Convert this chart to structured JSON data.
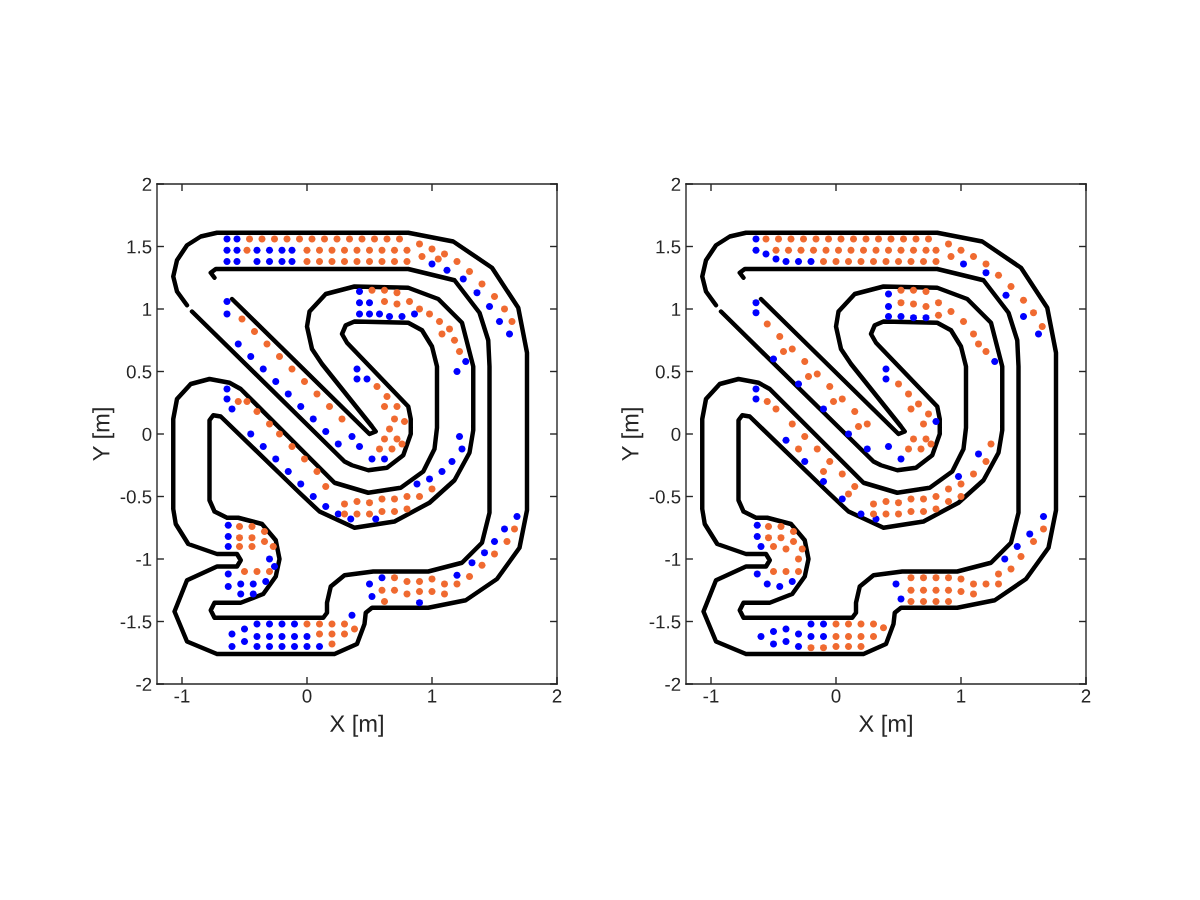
{
  "chart_data": [
    {
      "type": "scatter",
      "xlabel": "X [m]",
      "ylabel": "Y [m]",
      "xlim": [
        -1.2,
        2
      ],
      "ylim": [
        -2,
        2
      ],
      "xticks": [
        -1,
        0,
        1,
        2
      ],
      "yticks": [
        -2,
        -1.5,
        -1,
        -0.5,
        0,
        0.5,
        1,
        1.5,
        2
      ],
      "series": [
        {
          "type": "line",
          "color": "#000000",
          "x": [
            -0.96,
            -1.04,
            -1.07,
            -1.04,
            -0.96,
            -0.85,
            -0.72,
            0.81,
            1.17,
            1.48,
            1.69,
            1.76,
            1.76,
            1.7,
            1.52,
            1.27,
            0.97,
            0.52,
            0.47,
            0.46,
            0.4,
            0.22,
            -0.72,
            -0.96,
            -1.06,
            -0.96,
            -0.72,
            -0.56,
            -0.53,
            -0.56,
            -0.72,
            -0.95,
            -1.05,
            -1.07,
            -1.07,
            -1.04,
            -0.93,
            -0.78,
            -0.62,
            -0.53,
            0.05,
            0.22,
            0.49,
            0.75,
            0.93,
            1.02,
            1.04,
            1.04,
            1.0,
            0.92,
            0.81,
            0.38,
            0.31,
            0.28,
            0.32,
            0.81,
            0.83,
            0.83,
            0.77,
            0.64,
            0.49,
            0.36,
            0.3,
            -0.92
          ],
          "values": [
            1.03,
            1.14,
            1.26,
            1.39,
            1.51,
            1.58,
            1.61,
            1.61,
            1.54,
            1.33,
            1.01,
            0.65,
            -0.61,
            -0.91,
            -1.16,
            -1.33,
            -1.39,
            -1.39,
            -1.43,
            -1.52,
            -1.68,
            -1.76,
            -1.76,
            -1.66,
            -1.42,
            -1.17,
            -1.06,
            -1.06,
            -1.01,
            -0.96,
            -0.96,
            -0.88,
            -0.72,
            -0.6,
            0.12,
            0.28,
            0.4,
            0.44,
            0.41,
            0.36,
            -0.22,
            -0.39,
            -0.47,
            -0.43,
            -0.3,
            -0.12,
            0.05,
            0.54,
            0.7,
            0.83,
            0.89,
            0.9,
            0.87,
            0.8,
            0.73,
            0.22,
            0.12,
            0.0,
            -0.17,
            -0.27,
            -0.29,
            -0.25,
            -0.22,
            0.98
          ]
        },
        {
          "type": "line",
          "color": "#000000",
          "x": [
            -0.74,
            -0.77,
            -0.73,
            0.81,
            1.18,
            1.38,
            1.45,
            1.46,
            1.46,
            1.4,
            1.24,
            0.97,
            0.53,
            0.3,
            0.19,
            0.16,
            0.16,
            0.13,
            -0.74,
            -0.77,
            -0.74,
            -0.53,
            -0.35,
            -0.25,
            -0.22,
            -0.25,
            -0.36,
            -0.55,
            -0.64,
            -0.74,
            -0.78,
            -0.78,
            -0.75,
            -0.69,
            -0.06,
            0.1,
            0.38,
            0.7,
            0.98,
            1.18,
            1.3,
            1.33,
            1.33,
            1.24,
            1.05,
            0.81,
            0.38,
            0.15,
            0.02,
            0.0,
            0.04,
            0.12,
            0.52,
            0.55,
            0.5,
            -0.6
          ],
          "values": [
            1.25,
            1.29,
            1.32,
            1.32,
            1.23,
            0.97,
            0.75,
            0.54,
            -0.63,
            -0.87,
            -1.03,
            -1.1,
            -1.1,
            -1.13,
            -1.22,
            -1.35,
            -1.43,
            -1.47,
            -1.47,
            -1.41,
            -1.35,
            -1.35,
            -1.28,
            -1.14,
            -1.0,
            -0.85,
            -0.72,
            -0.67,
            -0.67,
            -0.62,
            -0.53,
            0.11,
            0.15,
            0.14,
            -0.47,
            -0.62,
            -0.75,
            -0.7,
            -0.55,
            -0.37,
            -0.15,
            0.03,
            0.54,
            0.89,
            1.08,
            1.17,
            1.18,
            1.12,
            0.98,
            0.86,
            0.68,
            0.56,
            0.06,
            0.02,
            0.0,
            1.08
          ]
        },
        {
          "color": "#0000ff",
          "marker": "circle",
          "x": [
            -0.64,
            -0.56,
            -0.64,
            -0.56,
            -0.64,
            -0.56,
            -0.4,
            -0.3,
            -0.2,
            -0.12,
            -0.4,
            -0.3,
            -0.2,
            -0.12,
            1.0,
            1.12,
            1.25,
            1.36,
            1.46,
            1.54,
            1.62,
            0.42,
            0.42,
            0.42,
            0.5,
            0.58,
            0.66,
            0.76,
            0.86,
            0.5,
            1.2,
            1.27,
            -0.64,
            -0.64,
            -0.55,
            -0.45,
            -0.35,
            -0.25,
            -0.15,
            -0.05,
            0.05,
            0.15,
            0.25,
            0.4,
            0.4,
            0.48,
            0.36,
            0.42,
            0.52,
            0.62,
            -0.64,
            -0.64,
            -0.6,
            -0.45,
            -0.35,
            -0.25,
            -0.15,
            -0.05,
            0.05,
            0.15,
            0.25,
            0.35,
            0.55,
            0.88,
            0.98,
            1.08,
            1.16,
            1.24,
            1.22,
            -0.63,
            -0.63,
            -0.63,
            -0.3,
            -0.26,
            -0.63,
            -0.63,
            -0.53,
            -0.43,
            -0.33,
            -0.53,
            -0.43,
            -0.6,
            -0.6,
            -0.5,
            -0.5,
            -0.4,
            -0.4,
            -0.4,
            -0.3,
            -0.3,
            -0.3,
            -0.2,
            -0.2,
            -0.2,
            -0.1,
            -0.1,
            -0.1,
            0.0,
            0.0,
            0.1,
            0.36,
            0.5,
            0.52,
            0.6,
            1.2,
            1.32,
            1.42,
            1.5,
            1.58,
            1.68,
            0.9
          ],
          "values": [
            1.56,
            1.56,
            1.47,
            1.47,
            1.38,
            1.38,
            1.47,
            1.47,
            1.47,
            1.47,
            1.38,
            1.38,
            1.38,
            1.38,
            1.36,
            1.31,
            1.24,
            1.13,
            1.02,
            0.9,
            0.8,
            1.14,
            1.05,
            0.96,
            0.96,
            0.96,
            0.94,
            0.94,
            0.96,
            1.05,
            0.5,
            0.58,
            1.06,
            0.96,
            0.72,
            0.62,
            0.52,
            0.42,
            0.32,
            0.22,
            0.12,
            0.02,
            -0.08,
            0.52,
            0.44,
            0.44,
            -0.02,
            -0.1,
            -0.2,
            -0.2,
            0.36,
            0.28,
            0.2,
            0.0,
            -0.1,
            -0.2,
            -0.3,
            -0.4,
            -0.5,
            -0.58,
            -0.64,
            -0.68,
            -0.68,
            -0.4,
            -0.36,
            -0.3,
            -0.22,
            -0.12,
            -0.02,
            -0.73,
            -0.82,
            -0.9,
            -1.0,
            -1.06,
            -1.12,
            -1.22,
            -1.2,
            -1.2,
            -1.18,
            -1.28,
            -1.28,
            -1.6,
            -1.7,
            -1.56,
            -1.66,
            -1.52,
            -1.62,
            -1.7,
            -1.52,
            -1.62,
            -1.7,
            -1.52,
            -1.62,
            -1.7,
            -1.52,
            -1.62,
            -1.7,
            -1.62,
            -1.7,
            -1.7,
            -1.45,
            -1.2,
            -1.3,
            -1.15,
            -1.13,
            -1.03,
            -0.95,
            -0.86,
            -0.76,
            -0.66,
            -1.35
          ]
        },
        {
          "color": "#f06a30",
          "marker": "circle",
          "x": [
            -0.46,
            -0.36,
            -0.26,
            -0.16,
            -0.06,
            0.04,
            0.14,
            0.24,
            0.34,
            0.44,
            0.54,
            0.64,
            0.74,
            -0.48,
            0.0,
            0.1,
            0.2,
            0.3,
            0.4,
            0.5,
            0.6,
            0.7,
            0.8,
            0.0,
            0.1,
            0.2,
            0.3,
            0.4,
            0.5,
            0.6,
            0.7,
            0.8,
            0.9,
            1.0,
            1.1,
            1.2,
            1.3,
            1.4,
            1.5,
            1.58,
            1.64,
            0.92,
            1.05,
            0.52,
            0.62,
            0.72,
            0.62,
            0.72,
            0.82,
            0.9,
            0.98,
            1.06,
            1.14,
            1.08,
            1.18,
            1.22,
            -0.52,
            -0.42,
            -0.32,
            -0.22,
            -0.12,
            -0.02,
            0.08,
            0.18,
            0.28,
            0.56,
            0.64,
            0.72,
            0.62,
            0.7,
            0.78,
            0.66,
            0.62,
            0.72,
            0.58,
            0.68,
            0.76,
            -0.55,
            -0.48,
            -0.4,
            -0.3,
            -0.22,
            -0.12,
            -0.02,
            0.08,
            0.15,
            0.3,
            0.3,
            0.4,
            0.4,
            0.5,
            0.5,
            0.6,
            0.6,
            0.7,
            0.7,
            0.8,
            0.8,
            0.9,
            1.0,
            -0.54,
            -0.44,
            -0.34,
            -0.54,
            -0.44,
            -0.34,
            -0.27,
            -0.54,
            -0.44,
            -0.5,
            -0.4,
            -0.3,
            0.0,
            0.1,
            0.1,
            0.2,
            0.2,
            0.3,
            0.3,
            0.2,
            0.38,
            0.7,
            0.7,
            0.8,
            0.8,
            0.9,
            0.9,
            1.0,
            1.0,
            1.1,
            1.1,
            1.2,
            1.3,
            1.4,
            1.5,
            1.6,
            1.66,
            0.6,
            0.62
          ],
          "values": [
            1.56,
            1.56,
            1.56,
            1.56,
            1.56,
            1.56,
            1.56,
            1.56,
            1.56,
            1.56,
            1.56,
            1.56,
            1.56,
            1.47,
            1.47,
            1.47,
            1.47,
            1.47,
            1.47,
            1.47,
            1.47,
            1.47,
            1.47,
            1.38,
            1.38,
            1.38,
            1.38,
            1.38,
            1.38,
            1.38,
            1.38,
            1.38,
            1.52,
            1.48,
            1.44,
            1.38,
            1.3,
            1.2,
            1.1,
            1.0,
            0.9,
            1.42,
            1.4,
            1.15,
            1.15,
            1.13,
            1.06,
            1.04,
            1.06,
            1.0,
            0.96,
            0.9,
            0.84,
            0.8,
            0.75,
            0.66,
            0.92,
            0.82,
            0.72,
            0.62,
            0.52,
            0.42,
            0.32,
            0.22,
            0.12,
            0.38,
            0.3,
            0.22,
            0.22,
            0.12,
            0.1,
            0.04,
            -0.04,
            -0.04,
            -0.12,
            -0.12,
            -0.08,
            0.26,
            0.26,
            0.18,
            0.08,
            0.0,
            -0.1,
            -0.2,
            -0.3,
            -0.42,
            -0.56,
            -0.64,
            -0.54,
            -0.64,
            -0.55,
            -0.64,
            -0.52,
            -0.62,
            -0.52,
            -0.62,
            -0.5,
            -0.6,
            -0.5,
            -0.44,
            -0.74,
            -0.74,
            -0.78,
            -0.83,
            -0.83,
            -0.86,
            -0.9,
            -0.9,
            -0.9,
            -1.1,
            -1.1,
            -1.1,
            -1.52,
            -1.52,
            -1.6,
            -1.52,
            -1.6,
            -1.52,
            -1.6,
            -1.68,
            -1.56,
            -1.15,
            -1.25,
            -1.18,
            -1.28,
            -1.18,
            -1.26,
            -1.16,
            -1.26,
            -1.2,
            -1.28,
            -1.2,
            -1.14,
            -1.05,
            -0.96,
            -0.86,
            -0.76,
            -1.25,
            -1.34
          ]
        }
      ]
    },
    {
      "type": "scatter",
      "xlabel": "X [m]",
      "ylabel": "Y [m]",
      "xlim": [
        -1.2,
        2
      ],
      "ylim": [
        -2,
        2
      ],
      "xticks": [
        -1,
        0,
        1,
        2
      ],
      "yticks": [
        -2,
        -1.5,
        -1,
        -0.5,
        0,
        0.5,
        1,
        1.5,
        2
      ],
      "series": [
        {
          "type": "line",
          "color": "#000000",
          "x": [
            -0.96,
            -1.04,
            -1.07,
            -1.04,
            -0.96,
            -0.85,
            -0.72,
            0.81,
            1.17,
            1.48,
            1.69,
            1.76,
            1.76,
            1.7,
            1.52,
            1.27,
            0.97,
            0.52,
            0.47,
            0.46,
            0.4,
            0.22,
            -0.72,
            -0.96,
            -1.06,
            -0.96,
            -0.72,
            -0.56,
            -0.53,
            -0.56,
            -0.72,
            -0.95,
            -1.05,
            -1.07,
            -1.07,
            -1.04,
            -0.93,
            -0.78,
            -0.62,
            -0.53,
            0.05,
            0.22,
            0.49,
            0.75,
            0.93,
            1.02,
            1.04,
            1.04,
            1.0,
            0.92,
            0.81,
            0.38,
            0.31,
            0.28,
            0.32,
            0.81,
            0.83,
            0.83,
            0.77,
            0.64,
            0.49,
            0.36,
            0.3,
            -0.92
          ],
          "values": [
            1.03,
            1.14,
            1.26,
            1.39,
            1.51,
            1.58,
            1.61,
            1.61,
            1.54,
            1.33,
            1.01,
            0.65,
            -0.61,
            -0.91,
            -1.16,
            -1.33,
            -1.39,
            -1.39,
            -1.43,
            -1.52,
            -1.68,
            -1.76,
            -1.76,
            -1.66,
            -1.42,
            -1.17,
            -1.06,
            -1.06,
            -1.01,
            -0.96,
            -0.96,
            -0.88,
            -0.72,
            -0.6,
            0.12,
            0.28,
            0.4,
            0.44,
            0.41,
            0.36,
            -0.22,
            -0.39,
            -0.47,
            -0.43,
            -0.3,
            -0.12,
            0.05,
            0.54,
            0.7,
            0.83,
            0.89,
            0.9,
            0.87,
            0.8,
            0.73,
            0.22,
            0.12,
            0.0,
            -0.17,
            -0.27,
            -0.29,
            -0.25,
            -0.22,
            0.98
          ]
        },
        {
          "type": "line",
          "color": "#000000",
          "x": [
            -0.74,
            -0.77,
            -0.73,
            0.81,
            1.18,
            1.38,
            1.45,
            1.46,
            1.46,
            1.4,
            1.24,
            0.97,
            0.53,
            0.3,
            0.19,
            0.16,
            0.16,
            0.13,
            -0.74,
            -0.77,
            -0.74,
            -0.53,
            -0.35,
            -0.25,
            -0.22,
            -0.25,
            -0.36,
            -0.55,
            -0.64,
            -0.74,
            -0.78,
            -0.78,
            -0.75,
            -0.69,
            -0.06,
            0.1,
            0.38,
            0.7,
            0.98,
            1.18,
            1.3,
            1.33,
            1.33,
            1.24,
            1.05,
            0.81,
            0.38,
            0.15,
            0.02,
            0.0,
            0.04,
            0.12,
            0.52,
            0.55,
            0.5,
            -0.6
          ],
          "values": [
            1.25,
            1.29,
            1.32,
            1.32,
            1.23,
            0.97,
            0.75,
            0.54,
            -0.63,
            -0.87,
            -1.03,
            -1.1,
            -1.1,
            -1.13,
            -1.22,
            -1.35,
            -1.43,
            -1.47,
            -1.47,
            -1.41,
            -1.35,
            -1.35,
            -1.28,
            -1.14,
            -1.0,
            -0.85,
            -0.72,
            -0.67,
            -0.67,
            -0.62,
            -0.53,
            0.11,
            0.15,
            0.14,
            -0.47,
            -0.62,
            -0.75,
            -0.7,
            -0.55,
            -0.37,
            -0.15,
            0.03,
            0.54,
            0.89,
            1.08,
            1.17,
            1.18,
            1.12,
            0.98,
            0.86,
            0.68,
            0.56,
            0.06,
            0.02,
            0.0,
            1.08
          ]
        },
        {
          "color": "#0000ff",
          "marker": "circle",
          "x": [
            -0.64,
            -0.64,
            -0.56,
            -0.48,
            -0.4,
            -0.3,
            -0.2,
            1.02,
            1.2,
            1.36,
            1.5,
            1.62,
            0.42,
            0.42,
            0.42,
            0.52,
            0.62,
            0.72,
            1.27,
            -0.64,
            -0.64,
            -0.5,
            -0.3,
            -0.1,
            0.1,
            0.25,
            0.4,
            0.4,
            0.8,
            0.42,
            0.52,
            -0.64,
            -0.64,
            -0.4,
            -0.25,
            -0.1,
            0.05,
            0.2,
            0.32,
            0.98,
            1.14,
            -0.63,
            -0.63,
            -0.6,
            -0.63,
            -0.55,
            -0.45,
            -0.35,
            -0.6,
            -0.5,
            -0.5,
            -0.4,
            -0.4,
            -0.3,
            -0.3,
            -0.2,
            -0.2,
            -0.1,
            -0.1,
            0.48,
            0.52,
            1.35,
            1.45,
            1.55,
            1.66
          ],
          "values": [
            1.56,
            1.47,
            1.44,
            1.4,
            1.38,
            1.38,
            1.38,
            1.36,
            1.29,
            1.11,
            0.94,
            0.8,
            1.12,
            1.02,
            0.94,
            0.94,
            0.93,
            0.93,
            0.58,
            1.05,
            0.97,
            0.6,
            0.4,
            0.2,
            0.0,
            -0.12,
            0.52,
            0.44,
            0.1,
            -0.1,
            -0.2,
            0.36,
            0.28,
            -0.05,
            -0.22,
            -0.38,
            -0.52,
            -0.64,
            -0.68,
            -0.34,
            -0.16,
            -0.73,
            -0.82,
            -0.9,
            -1.12,
            -1.2,
            -1.22,
            -1.18,
            -1.62,
            -1.58,
            -1.68,
            -1.56,
            -1.66,
            -1.6,
            -1.7,
            -1.52,
            -1.62,
            -1.52,
            -1.62,
            -1.2,
            -1.32,
            -1.0,
            -0.9,
            -0.8,
            -0.66
          ]
        },
        {
          "color": "#f06a30",
          "marker": "circle",
          "x": [
            -0.56,
            -0.46,
            -0.36,
            -0.26,
            -0.16,
            -0.06,
            0.04,
            0.14,
            0.24,
            0.34,
            0.44,
            0.54,
            0.64,
            0.74,
            -0.48,
            -0.38,
            -0.28,
            -0.18,
            -0.08,
            0.02,
            0.12,
            0.22,
            0.32,
            0.42,
            0.52,
            0.62,
            0.72,
            0.8,
            -0.1,
            0.0,
            0.1,
            0.2,
            0.3,
            0.4,
            0.5,
            0.6,
            0.7,
            0.8,
            0.9,
            1.0,
            1.1,
            1.2,
            1.3,
            1.4,
            1.5,
            1.58,
            1.65,
            0.92,
            0.52,
            0.62,
            0.72,
            0.52,
            0.62,
            0.72,
            0.82,
            0.82,
            0.92,
            1.02,
            1.1,
            1.14,
            1.2,
            -0.55,
            -0.45,
            -0.35,
            -0.25,
            -0.15,
            -0.05,
            0.05,
            0.15,
            0.25,
            -0.42,
            -0.22,
            -0.02,
            0.18,
            0.5,
            0.58,
            0.66,
            0.74,
            0.6,
            0.7,
            0.62,
            0.72,
            0.58,
            0.68,
            0.76,
            -0.55,
            -0.48,
            -0.35,
            -0.25,
            -0.15,
            -0.05,
            0.05,
            0.15,
            -0.3,
            -0.1,
            0.1,
            0.3,
            0.3,
            0.4,
            0.4,
            0.5,
            0.5,
            0.6,
            0.6,
            0.7,
            0.7,
            0.8,
            0.8,
            0.9,
            0.9,
            1.0,
            1.0,
            1.1,
            1.2,
            1.24,
            -0.54,
            -0.44,
            -0.34,
            -0.54,
            -0.44,
            -0.34,
            -0.27,
            -0.5,
            -0.4,
            -0.3,
            -0.5,
            -0.4,
            -0.3,
            0.0,
            0.0,
            0.0,
            0.1,
            0.1,
            0.1,
            0.2,
            0.2,
            0.2,
            0.3,
            0.3,
            0.38,
            -0.2,
            -0.1,
            0.6,
            0.6,
            0.6,
            0.7,
            0.7,
            0.7,
            0.8,
            0.8,
            0.8,
            0.9,
            0.9,
            0.9,
            1.0,
            1.0,
            1.1,
            1.1,
            1.2,
            1.3,
            1.3,
            1.4,
            1.48,
            1.58,
            1.66
          ],
          "values": [
            1.56,
            1.56,
            1.56,
            1.56,
            1.56,
            1.56,
            1.56,
            1.56,
            1.56,
            1.56,
            1.56,
            1.56,
            1.56,
            1.56,
            1.47,
            1.47,
            1.47,
            1.47,
            1.47,
            1.47,
            1.47,
            1.47,
            1.47,
            1.47,
            1.47,
            1.47,
            1.47,
            1.47,
            1.38,
            1.38,
            1.38,
            1.38,
            1.38,
            1.38,
            1.38,
            1.38,
            1.38,
            1.38,
            1.52,
            1.47,
            1.42,
            1.36,
            1.27,
            1.18,
            1.07,
            0.97,
            0.86,
            1.42,
            1.15,
            1.15,
            1.14,
            1.05,
            1.04,
            1.02,
            1.05,
            0.95,
            0.98,
            0.9,
            0.8,
            0.72,
            0.66,
            0.88,
            0.78,
            0.68,
            0.58,
            0.48,
            0.38,
            0.28,
            0.18,
            0.08,
            0.66,
            0.46,
            0.26,
            0.06,
            0.4,
            0.32,
            0.24,
            0.16,
            0.2,
            0.08,
            -0.04,
            -0.04,
            -0.12,
            -0.12,
            -0.08,
            0.26,
            0.2,
            0.08,
            -0.02,
            -0.12,
            -0.22,
            -0.32,
            -0.42,
            -0.12,
            -0.3,
            -0.48,
            -0.56,
            -0.64,
            -0.54,
            -0.64,
            -0.55,
            -0.64,
            -0.52,
            -0.62,
            -0.52,
            -0.62,
            -0.5,
            -0.6,
            -0.44,
            -0.54,
            -0.4,
            -0.5,
            -0.32,
            -0.22,
            -0.08,
            -0.74,
            -0.74,
            -0.78,
            -0.83,
            -0.83,
            -0.86,
            -0.92,
            -0.9,
            -0.92,
            -1.0,
            -1.1,
            -1.1,
            -1.1,
            -1.52,
            -1.62,
            -1.7,
            -1.52,
            -1.62,
            -1.7,
            -1.52,
            -1.62,
            -1.7,
            -1.52,
            -1.62,
            -1.55,
            -1.71,
            -1.71,
            -1.15,
            -1.25,
            -1.34,
            -1.15,
            -1.25,
            -1.34,
            -1.15,
            -1.25,
            -1.34,
            -1.15,
            -1.25,
            -1.34,
            -1.16,
            -1.26,
            -1.2,
            -1.28,
            -1.2,
            -1.12,
            -1.2,
            -1.08,
            -0.98,
            -0.86,
            -0.76
          ]
        }
      ]
    }
  ]
}
